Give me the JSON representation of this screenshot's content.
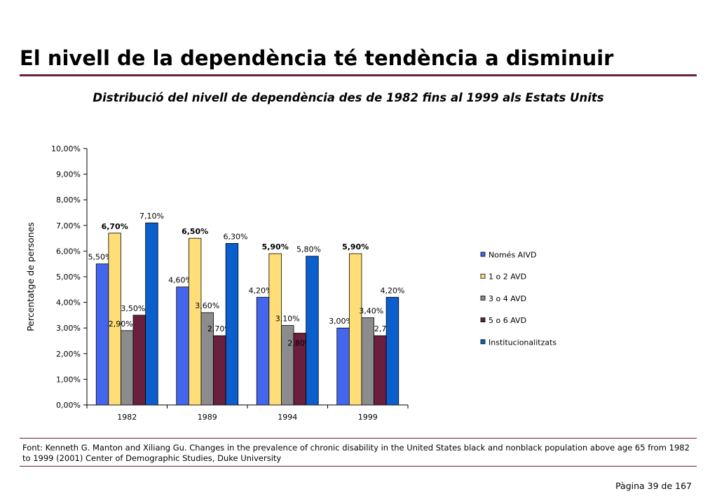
{
  "slide": {
    "title": "El nivell de la dependència té tendència a disminuir",
    "subtitle": "Distribució del nivell de dependència des de 1982 fins al 1999 als Estats Units",
    "source": "Font: Kenneth G. Manton and Xiliang Gu. Changes in the prevalence of chronic disability in the United States black and nonblack population above age 65 from 1982 to 1999 (2001) Center of Demographic Studies, Duke University",
    "page_label": "Pàgina 39 de 167",
    "accent_color": "#6b1f3f"
  },
  "chart_data": {
    "type": "bar",
    "title": "",
    "xlabel": "",
    "ylabel": "Percentatge de persones",
    "categories": [
      "1982",
      "1989",
      "1994",
      "1999"
    ],
    "ylim": [
      0,
      10
    ],
    "yticks": [
      "0,00%",
      "1,00%",
      "2,00%",
      "3,00%",
      "4,00%",
      "5,00%",
      "6,00%",
      "7,00%",
      "8,00%",
      "9,00%",
      "10,00%"
    ],
    "legend_position": "right",
    "series": [
      {
        "name": "Només AIVD",
        "color": "#4466ee",
        "values": [
          5.5,
          4.6,
          4.2,
          3.0
        ],
        "labels": [
          "5,50%",
          "4,60%",
          "4,20%",
          "3,00%"
        ],
        "bold": false
      },
      {
        "name": "1 o 2 AVD",
        "color": "#ffdd77",
        "values": [
          6.7,
          6.5,
          5.9,
          5.9
        ],
        "labels": [
          "6,70%",
          "6,50%",
          "5,90%",
          "5,90%"
        ],
        "bold": true
      },
      {
        "name": "3 o 4 AVD",
        "color": "#8c8c8c",
        "values": [
          2.9,
          3.6,
          3.1,
          3.4
        ],
        "labels": [
          "2,90%",
          "3,60%",
          "3,10%",
          "3,40%"
        ],
        "bold": false
      },
      {
        "name": "5 o 6 AVD",
        "color": "#6b1f3f",
        "values": [
          3.5,
          2.7,
          2.8,
          2.7
        ],
        "labels": [
          "3,50%",
          "2,70%",
          "2,80%",
          "2,70%"
        ],
        "bold": false
      },
      {
        "name": "Institucionalitzats",
        "color": "#0a5fcc",
        "values": [
          7.1,
          6.3,
          5.8,
          4.2
        ],
        "labels": [
          "7,10%",
          "6,30%",
          "5,80%",
          "4,20%"
        ],
        "bold": false
      }
    ]
  }
}
